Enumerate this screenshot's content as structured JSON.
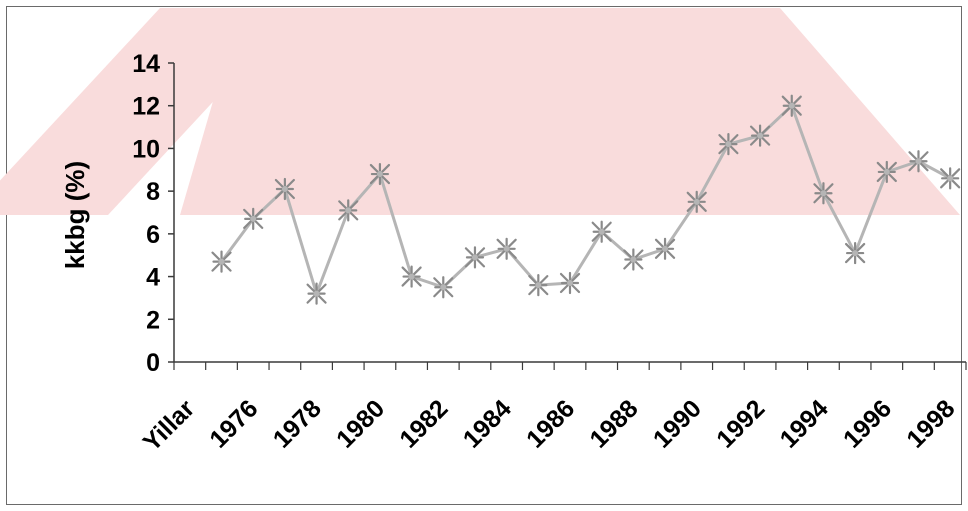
{
  "colors": {
    "line": "#b5b5b5",
    "marker": "#8a8a8a",
    "axis": "#3a3a3a",
    "watermark": "#f9dcdc",
    "frame": "#6a6a6a"
  },
  "chart_data": {
    "type": "line",
    "title": "",
    "xlabel": "",
    "ylabel": "kkbg (%)",
    "ylim": [
      0,
      14
    ],
    "yticks": [
      0,
      2,
      4,
      6,
      8,
      10,
      12,
      14
    ],
    "x_axis_label_first": "Yillar",
    "x_tick_labels": [
      "1976",
      "1978",
      "1980",
      "1982",
      "1984",
      "1986",
      "1988",
      "1990",
      "1992",
      "1994",
      "1996",
      "1998"
    ],
    "grid": false,
    "legend": "none",
    "marker": "asterisk",
    "series": [
      {
        "x": [
          1975,
          1976,
          1977,
          1978,
          1979,
          1980,
          1981,
          1982,
          1983,
          1984,
          1985,
          1986,
          1987,
          1988,
          1989,
          1990,
          1991,
          1992,
          1993,
          1994,
          1995,
          1996,
          1997,
          1998
        ],
        "values": [
          4.7,
          6.7,
          8.1,
          3.2,
          7.1,
          8.8,
          4.0,
          3.5,
          4.9,
          5.3,
          3.6,
          3.7,
          6.1,
          4.8,
          5.3,
          7.5,
          10.2,
          10.6,
          12.0,
          7.9,
          5.1,
          8.9,
          9.4,
          8.6
        ]
      }
    ]
  }
}
